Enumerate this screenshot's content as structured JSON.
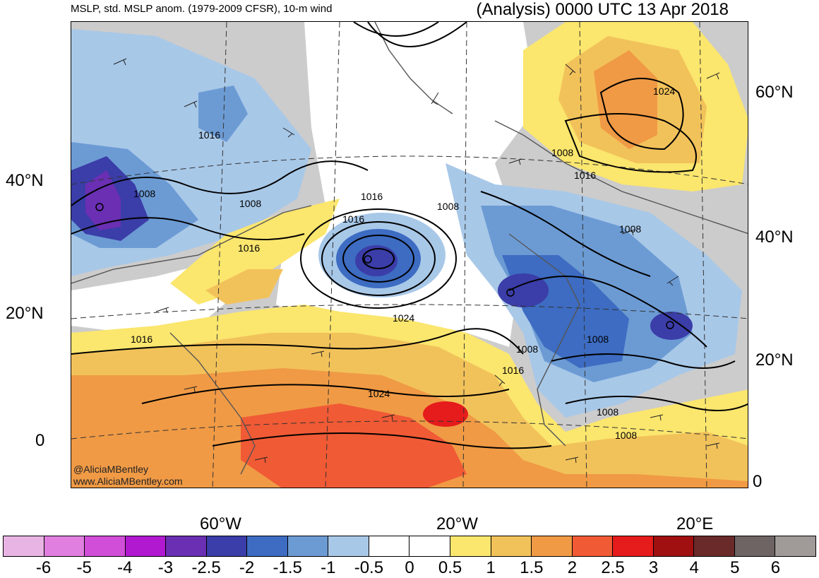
{
  "header": {
    "left_title": "MSLP, std. MSLP anom. (1979-2009 CFSR), 10-m wind",
    "right_title": "(Analysis) 0000 UTC 13 Apr 2018"
  },
  "axes": {
    "left_lat_labels": [
      "40°N",
      "20°N",
      "0"
    ],
    "right_lat_labels": [
      "60°N",
      "40°N",
      "20°N",
      "0"
    ],
    "lon_labels": [
      "60°W",
      "20°W",
      "20°E"
    ]
  },
  "credits": [
    "@AliciaMBentley",
    "www.AliciaMBentley.com"
  ],
  "isobar_labels": [
    "1016",
    "1008",
    "1008",
    "1016",
    "1016",
    "1016",
    "1008",
    "1024",
    "1016",
    "1008",
    "1016",
    "1024",
    "1008",
    "1016",
    "1008",
    "1008",
    "1008",
    "1024"
  ],
  "colorbar": {
    "tick_labels": [
      "-6",
      "-5",
      "-4",
      "-3",
      "-2.5",
      "-2",
      "-1.5",
      "-1",
      "-0.5",
      "0",
      "0.5",
      "1",
      "1.5",
      "2",
      "2.5",
      "3",
      "4",
      "5",
      "6"
    ],
    "colors": [
      "#e8b4e3",
      "#e07fe0",
      "#d14ed8",
      "#b119d1",
      "#6a2fb3",
      "#3b3da8",
      "#3d6cc2",
      "#6c9bd4",
      "#a8c8e8",
      "#ffffff",
      "#ffffff",
      "#fbe66e",
      "#f2c25a",
      "#f09a45",
      "#f05a35",
      "#e61b1b",
      "#a01010",
      "#6a2a2a",
      "#6e6464",
      "#a09a98"
    ]
  },
  "anomaly_colors": {
    "gray": "#cccccc",
    "light_blue": "#a8c8e8",
    "mid_blue": "#6c9bd4",
    "blue": "#3d6cc2",
    "dark_blue": "#3b3da8",
    "purple": "#6a2fb3",
    "yellow": "#fbe66e",
    "light_orange": "#f2c25a",
    "orange": "#f09a45",
    "red_orange": "#f05a35",
    "red": "#e61b1b"
  }
}
